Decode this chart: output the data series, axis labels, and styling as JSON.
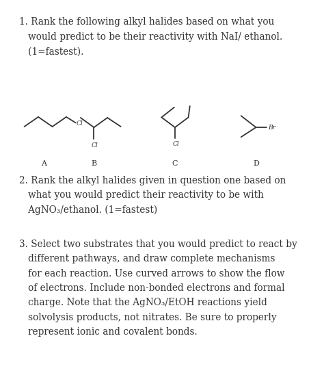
{
  "background_color": "#ffffff",
  "fig_width": 4.74,
  "fig_height": 5.64,
  "dpi": 100,
  "q1_line1": "1. Rank the following alkyl halides based on what you",
  "q1_line2": "   would predict to be their reactivity with NaI/ ethanol.",
  "q1_line3": "   (1=fastest).",
  "q2_line1": "2. Rank the alkyl halides given in question one based on",
  "q2_line2": "   what you would predict their reactivity to be with",
  "q2_line3": "   AgNO₃/ethanol. (1=fastest)",
  "q3_line1": "3. Select two substrates that you would predict to react by",
  "q3_line2": "   different pathways, and draw complete mechanisms",
  "q3_line3": "   for each reaction. Use curved arrows to show the flow",
  "q3_line4": "   of electrons. Include non-bonded electrons and formal",
  "q3_line5": "   charge. Note that the AgNO₃/EtOH reactions yield",
  "q3_line6": "   solvolysis products, not nitrates. Be sure to properly",
  "q3_line7": "   represent ionic and covalent bonds.",
  "line_color": "#333333",
  "text_color": "#333333",
  "halide_fontsize": 6.5,
  "label_fontsize": 8,
  "text_fontsize": 9.8
}
